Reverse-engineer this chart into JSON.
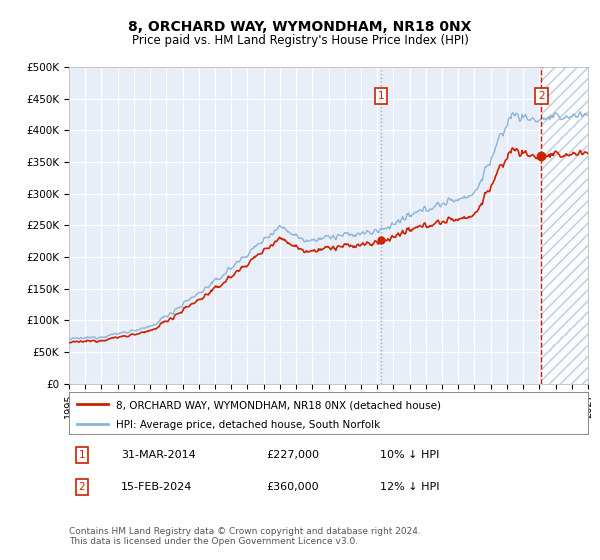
{
  "title": "8, ORCHARD WAY, WYMONDHAM, NR18 0NX",
  "subtitle": "Price paid vs. HM Land Registry's House Price Index (HPI)",
  "ylim": [
    0,
    500000
  ],
  "ytick_vals": [
    0,
    50000,
    100000,
    150000,
    200000,
    250000,
    300000,
    350000,
    400000,
    450000,
    500000
  ],
  "ytick_labels": [
    "£0",
    "£50K",
    "£100K",
    "£150K",
    "£200K",
    "£250K",
    "£300K",
    "£350K",
    "£400K",
    "£450K",
    "£500K"
  ],
  "xstart": 1995,
  "xend": 2027,
  "hpi_color": "#8ab4d8",
  "price_color": "#cc2200",
  "vline1_color": "#aaaaaa",
  "vline1_style": "dotted",
  "vline2_color": "#cc2200",
  "vline2_style": "dashed",
  "box_color": "#cc2200",
  "sale1_year": 2014.25,
  "sale1_price": 227000,
  "sale2_year": 2024.12,
  "sale2_price": 360000,
  "sale1_label": "1",
  "sale2_label": "2",
  "sale1_date": "31-MAR-2014",
  "sale1_price_str": "£227,000",
  "sale1_hpi": "10% ↓ HPI",
  "sale2_date": "15-FEB-2024",
  "sale2_price_str": "£360,000",
  "sale2_hpi": "12% ↓ HPI",
  "legend_line1": "8, ORCHARD WAY, WYMONDHAM, NR18 0NX (detached house)",
  "legend_line2": "HPI: Average price, detached house, South Norfolk",
  "footer": "Contains HM Land Registry data © Crown copyright and database right 2024.\nThis data is licensed under the Open Government Licence v3.0.",
  "background_color": "#ffffff",
  "plot_bg_color": "#e8eef8",
  "hatch_facecolor": "#d8e4f0",
  "grid_color": "#ffffff",
  "title_fontsize": 10,
  "subtitle_fontsize": 8.5,
  "tick_fontsize": 7.5
}
